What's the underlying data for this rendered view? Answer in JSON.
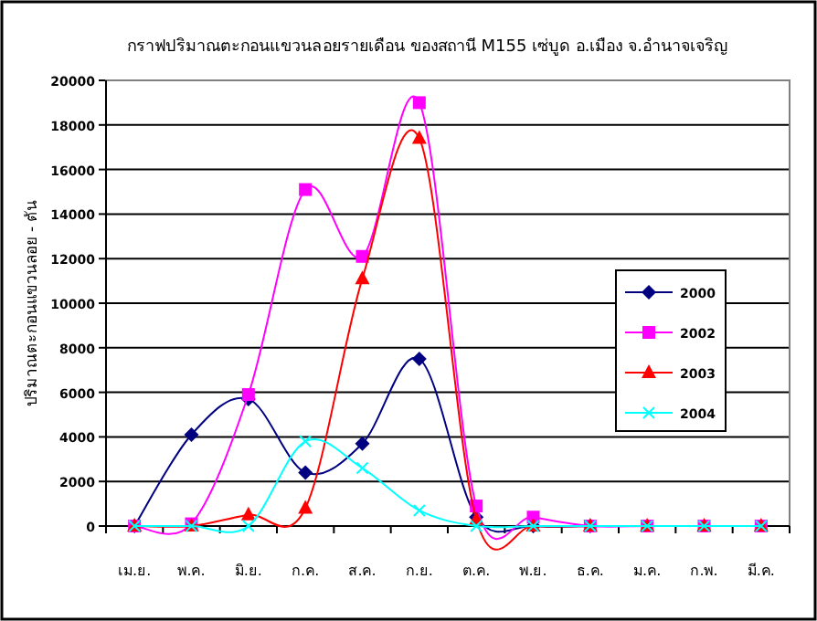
{
  "chart_data": {
    "type": "line",
    "title": "กราฟปริมาณตะกอนแขวนลอยรายเดือน ของสถานี M155 เซ่บูด อ.เมือง จ.อำนาจเจริญ",
    "ylabel": "ปริมาณตะกอนแขวนลอย - ตัน",
    "categories": [
      "เม.ย.",
      "พ.ค.",
      "มิ.ย.",
      "ก.ค.",
      "ส.ค.",
      "ก.ย.",
      "ต.ค.",
      "พ.ย.",
      "ธ.ค.",
      "ม.ค.",
      "ก.พ.",
      "มี.ค."
    ],
    "series": [
      {
        "name": "2000",
        "color": "#000080",
        "marker": "diamond",
        "values": [
          0,
          4100,
          5700,
          2400,
          3700,
          7500,
          400,
          0,
          0,
          null,
          null,
          null
        ]
      },
      {
        "name": "2002",
        "color": "#ff00ff",
        "marker": "square",
        "values": [
          0,
          100,
          5900,
          15100,
          12100,
          19000,
          900,
          400,
          0,
          0,
          0,
          0
        ]
      },
      {
        "name": "2003",
        "color": "#ff0000",
        "marker": "triangle",
        "values": [
          0,
          0,
          500,
          800,
          11100,
          17400,
          300,
          0,
          0,
          0,
          0,
          0
        ]
      },
      {
        "name": "2004",
        "color": "#00ffff",
        "marker": "cross",
        "values": [
          0,
          0,
          0,
          3800,
          2600,
          700,
          0,
          0,
          0,
          0,
          0,
          0
        ]
      }
    ],
    "ylim": [
      0,
      20000
    ],
    "yticks": [
      0,
      2000,
      4000,
      6000,
      8000,
      10000,
      12000,
      14000,
      16000,
      18000,
      20000
    ],
    "grid": "y",
    "legend": "right"
  }
}
